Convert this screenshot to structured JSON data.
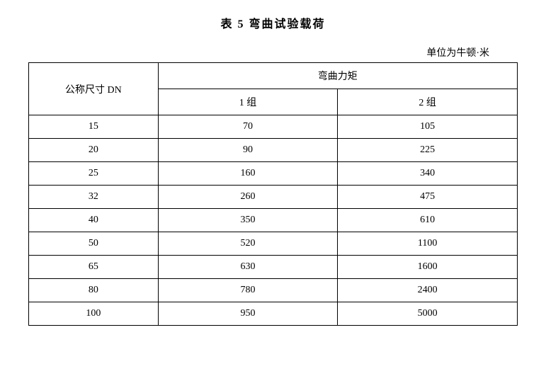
{
  "title": "表 5   弯曲试验载荷",
  "unit_label": "单位为牛顿·米",
  "table": {
    "header": {
      "col_dn": "公称尺寸 DN",
      "col_moment": "弯曲力矩",
      "group1": "1 组",
      "group2": "2 组"
    },
    "rows": [
      {
        "dn": "15",
        "g1": "70",
        "g2": "105"
      },
      {
        "dn": "20",
        "g1": "90",
        "g2": "225"
      },
      {
        "dn": "25",
        "g1": "160",
        "g2": "340"
      },
      {
        "dn": "32",
        "g1": "260",
        "g2": "475"
      },
      {
        "dn": "40",
        "g1": "350",
        "g2": "610"
      },
      {
        "dn": "50",
        "g1": "520",
        "g2": "1100"
      },
      {
        "dn": "65",
        "g1": "630",
        "g2": "1600"
      },
      {
        "dn": "80",
        "g1": "780",
        "g2": "2400"
      },
      {
        "dn": "100",
        "g1": "950",
        "g2": "5000"
      }
    ]
  },
  "styling": {
    "font_family": "SimSun",
    "title_fontsize": 16,
    "cell_fontsize": 14,
    "border_color": "#000000",
    "background_color": "#ffffff",
    "text_color": "#000000"
  }
}
